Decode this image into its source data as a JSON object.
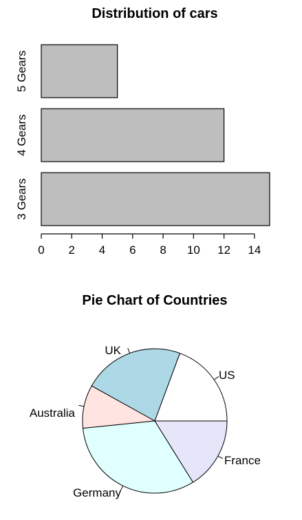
{
  "chart_data": [
    {
      "type": "bar",
      "orientation": "horizontal",
      "title": "Distribution of cars",
      "categories": [
        "3 Gears",
        "4 Gears",
        "5 Gears"
      ],
      "values": [
        15,
        12,
        5
      ],
      "xlim": [
        0,
        15
      ],
      "x_ticks": [
        0,
        2,
        4,
        6,
        8,
        10,
        12,
        14
      ],
      "bar_color": "#bebebe",
      "grid": false
    },
    {
      "type": "pie",
      "title": "Pie Chart of Countries",
      "labels": [
        "US",
        "UK",
        "Australia",
        "Germany",
        "France"
      ],
      "values": [
        6,
        7,
        3,
        10,
        5
      ],
      "colors": [
        "#ffffff",
        "#add8e6",
        "#ffe4e1",
        "#e0ffff",
        "#e6e6fa"
      ]
    }
  ]
}
